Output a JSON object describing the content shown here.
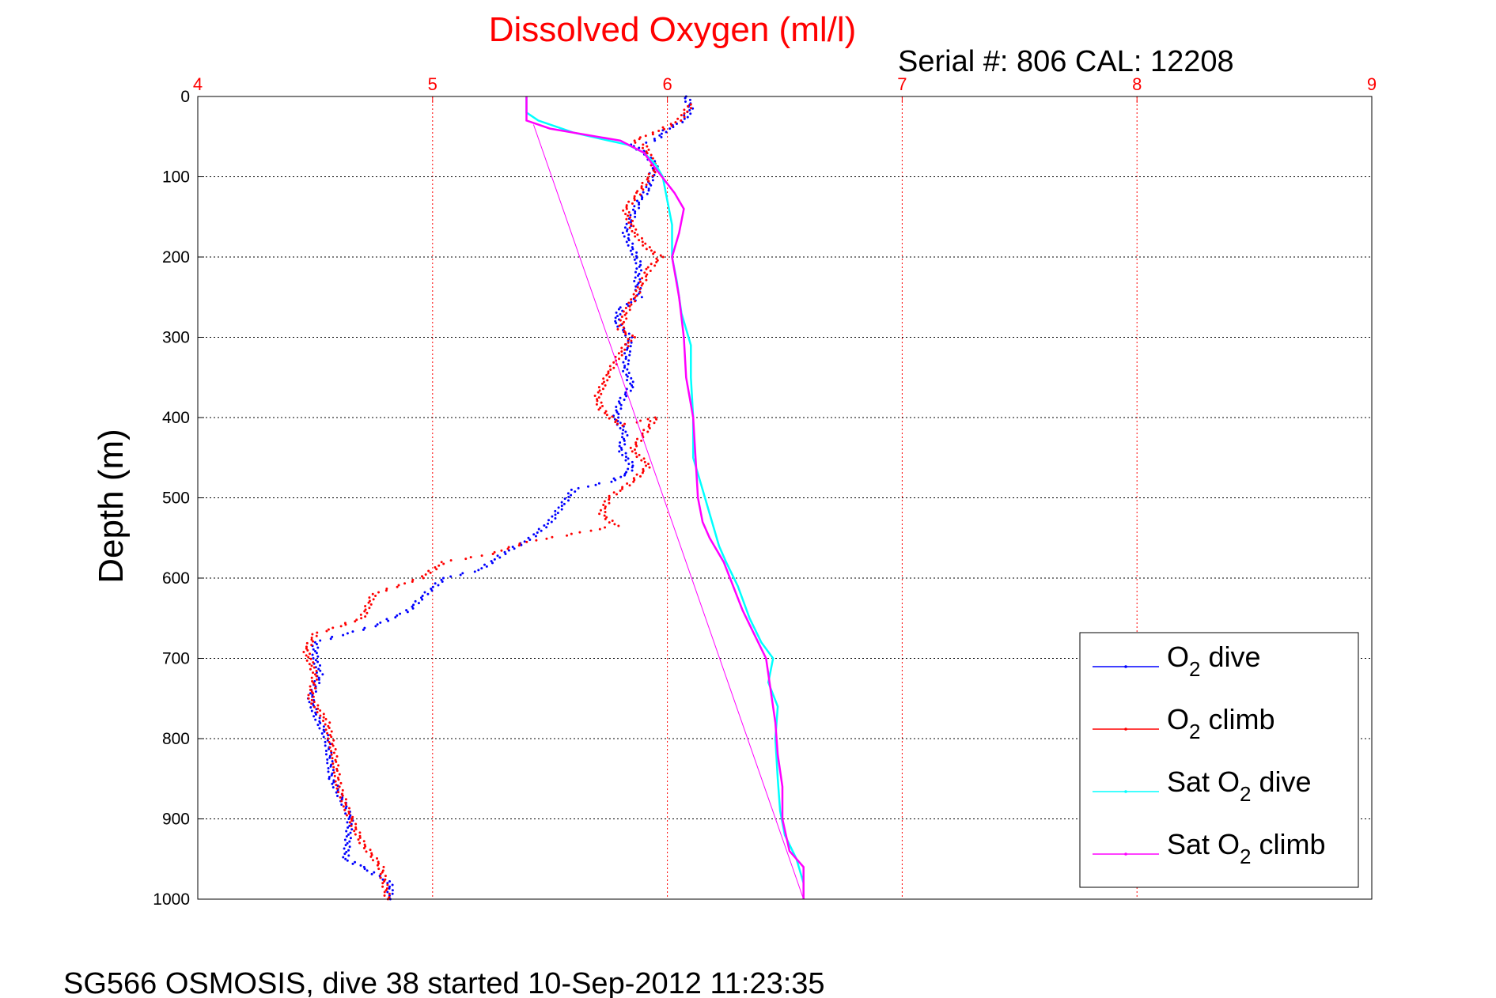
{
  "colors": {
    "title": "#ff0000",
    "grid_x": "#ff0000",
    "grid_y": "#000000",
    "o2_dive": "#0000ff",
    "o2_climb": "#ff0000",
    "sat_dive": "#00ffff",
    "sat_climb": "#ff00ff"
  },
  "chart_data": {
    "type": "line",
    "title": "Dissolved Oxygen (ml/l)",
    "subtitle": "Serial #: 806  CAL: 12208",
    "footer": "SG566 OSMOSIS, dive 38 started 10-Sep-2012 11:23:35",
    "ylabel": "Depth (m)",
    "xlim": [
      4,
      9
    ],
    "ylim": [
      0,
      1000
    ],
    "y_reversed": true,
    "x_axis_position": "top",
    "grid": true,
    "xticks": [
      4,
      5,
      6,
      7,
      8,
      9
    ],
    "yticks": [
      0,
      100,
      200,
      300,
      400,
      500,
      600,
      700,
      800,
      900,
      1000
    ],
    "legend": {
      "placement": "bottom-right",
      "entries": [
        {
          "main": "O",
          "sub": "2",
          "rest": " dive"
        },
        {
          "main": "O",
          "sub": "2",
          "rest": " climb"
        },
        {
          "main": "Sat O",
          "sub": "2",
          "rest": " dive"
        },
        {
          "main": "Sat O",
          "sub": "2",
          "rest": " climb"
        }
      ]
    },
    "series": [
      {
        "key": "o2_dive",
        "style": "dots",
        "points": [
          [
            6.08,
            0
          ],
          [
            6.1,
            15
          ],
          [
            6.07,
            30
          ],
          [
            6.0,
            40
          ],
          [
            5.95,
            55
          ],
          [
            5.85,
            60
          ],
          [
            5.9,
            70
          ],
          [
            5.95,
            85
          ],
          [
            5.93,
            100
          ],
          [
            5.92,
            115
          ],
          [
            5.88,
            130
          ],
          [
            5.85,
            150
          ],
          [
            5.82,
            170
          ],
          [
            5.85,
            190
          ],
          [
            5.88,
            210
          ],
          [
            5.87,
            230
          ],
          [
            5.88,
            250
          ],
          [
            5.8,
            265
          ],
          [
            5.78,
            280
          ],
          [
            5.84,
            300
          ],
          [
            5.83,
            320
          ],
          [
            5.82,
            340
          ],
          [
            5.85,
            360
          ],
          [
            5.8,
            380
          ],
          [
            5.78,
            400
          ],
          [
            5.82,
            420
          ],
          [
            5.8,
            440
          ],
          [
            5.85,
            460
          ],
          [
            5.83,
            470
          ],
          [
            5.75,
            480
          ],
          [
            5.6,
            490
          ],
          [
            5.55,
            510
          ],
          [
            5.5,
            530
          ],
          [
            5.42,
            550
          ],
          [
            5.3,
            570
          ],
          [
            5.2,
            590
          ],
          [
            5.05,
            600
          ],
          [
            4.97,
            620
          ],
          [
            4.9,
            640
          ],
          [
            4.75,
            660
          ],
          [
            4.5,
            680
          ],
          [
            4.5,
            700
          ],
          [
            4.52,
            720
          ],
          [
            4.48,
            750
          ],
          [
            4.5,
            770
          ],
          [
            4.55,
            800
          ],
          [
            4.57,
            850
          ],
          [
            4.62,
            880
          ],
          [
            4.65,
            900
          ],
          [
            4.63,
            950
          ],
          [
            4.7,
            960
          ],
          [
            4.82,
            980
          ],
          [
            4.82,
            1000
          ]
        ]
      },
      {
        "key": "o2_climb",
        "style": "dots",
        "points": [
          [
            6.1,
            10
          ],
          [
            6.05,
            30
          ],
          [
            5.95,
            45
          ],
          [
            5.85,
            55
          ],
          [
            5.9,
            60
          ],
          [
            5.95,
            90
          ],
          [
            5.9,
            110
          ],
          [
            5.88,
            120
          ],
          [
            5.82,
            140
          ],
          [
            5.86,
            170
          ],
          [
            5.92,
            190
          ],
          [
            5.97,
            200
          ],
          [
            5.92,
            215
          ],
          [
            5.88,
            240
          ],
          [
            5.82,
            270
          ],
          [
            5.8,
            290
          ],
          [
            5.85,
            300
          ],
          [
            5.8,
            320
          ],
          [
            5.75,
            345
          ],
          [
            5.7,
            375
          ],
          [
            5.72,
            390
          ],
          [
            5.8,
            410
          ],
          [
            5.95,
            400
          ],
          [
            5.9,
            420
          ],
          [
            5.85,
            440
          ],
          [
            5.92,
            460
          ],
          [
            5.85,
            480
          ],
          [
            5.75,
            500
          ],
          [
            5.72,
            520
          ],
          [
            5.78,
            535
          ],
          [
            5.6,
            545
          ],
          [
            5.4,
            555
          ],
          [
            5.25,
            570
          ],
          [
            5.05,
            580
          ],
          [
            4.95,
            600
          ],
          [
            4.75,
            620
          ],
          [
            4.7,
            650
          ],
          [
            4.6,
            660
          ],
          [
            4.5,
            670
          ],
          [
            4.46,
            690
          ],
          [
            4.5,
            720
          ],
          [
            4.48,
            750
          ],
          [
            4.55,
            780
          ],
          [
            4.58,
            820
          ],
          [
            4.6,
            860
          ],
          [
            4.65,
            900
          ],
          [
            4.7,
            930
          ],
          [
            4.78,
            960
          ],
          [
            4.81,
            1000
          ]
        ]
      },
      {
        "key": "sat_dive",
        "style": "line",
        "points": [
          [
            5.4,
            0
          ],
          [
            5.4,
            20
          ],
          [
            5.45,
            30
          ],
          [
            5.6,
            45
          ],
          [
            5.75,
            55
          ],
          [
            5.83,
            60
          ],
          [
            5.9,
            70
          ],
          [
            5.95,
            85
          ],
          [
            5.98,
            100
          ],
          [
            6.0,
            130
          ],
          [
            6.02,
            160
          ],
          [
            6.02,
            200
          ],
          [
            6.04,
            230
          ],
          [
            6.06,
            270
          ],
          [
            6.1,
            310
          ],
          [
            6.1,
            350
          ],
          [
            6.11,
            400
          ],
          [
            6.11,
            450
          ],
          [
            6.14,
            480
          ],
          [
            6.17,
            510
          ],
          [
            6.2,
            540
          ],
          [
            6.22,
            560
          ],
          [
            6.25,
            580
          ],
          [
            6.3,
            610
          ],
          [
            6.35,
            650
          ],
          [
            6.4,
            680
          ],
          [
            6.45,
            700
          ],
          [
            6.43,
            730
          ],
          [
            6.47,
            760
          ],
          [
            6.46,
            800
          ],
          [
            6.47,
            850
          ],
          [
            6.48,
            890
          ],
          [
            6.5,
            920
          ],
          [
            6.55,
            950
          ],
          [
            6.58,
            980
          ],
          [
            6.58,
            1000
          ]
        ]
      },
      {
        "key": "sat_climb",
        "style": "line",
        "points": [
          [
            5.4,
            0
          ],
          [
            5.4,
            30
          ],
          [
            5.5,
            40
          ],
          [
            5.7,
            50
          ],
          [
            5.8,
            55
          ],
          [
            5.9,
            70
          ],
          [
            5.95,
            90
          ],
          [
            6.03,
            120
          ],
          [
            6.07,
            140
          ],
          [
            6.05,
            170
          ],
          [
            6.02,
            200
          ],
          [
            6.05,
            250
          ],
          [
            6.07,
            300
          ],
          [
            6.08,
            350
          ],
          [
            6.11,
            400
          ],
          [
            6.12,
            450
          ],
          [
            6.13,
            500
          ],
          [
            6.15,
            530
          ],
          [
            6.18,
            550
          ],
          [
            6.24,
            580
          ],
          [
            6.28,
            610
          ],
          [
            6.32,
            640
          ],
          [
            6.37,
            670
          ],
          [
            6.42,
            700
          ],
          [
            6.44,
            740
          ],
          [
            6.46,
            780
          ],
          [
            6.47,
            820
          ],
          [
            6.49,
            860
          ],
          [
            6.49,
            900
          ],
          [
            6.52,
            940
          ],
          [
            6.58,
            960
          ],
          [
            6.58,
            1000
          ]
        ]
      },
      {
        "key": "sat_climb_linear",
        "style": "thin-line",
        "points": [
          [
            5.43,
            35
          ],
          [
            6.58,
            1000
          ]
        ]
      }
    ]
  }
}
